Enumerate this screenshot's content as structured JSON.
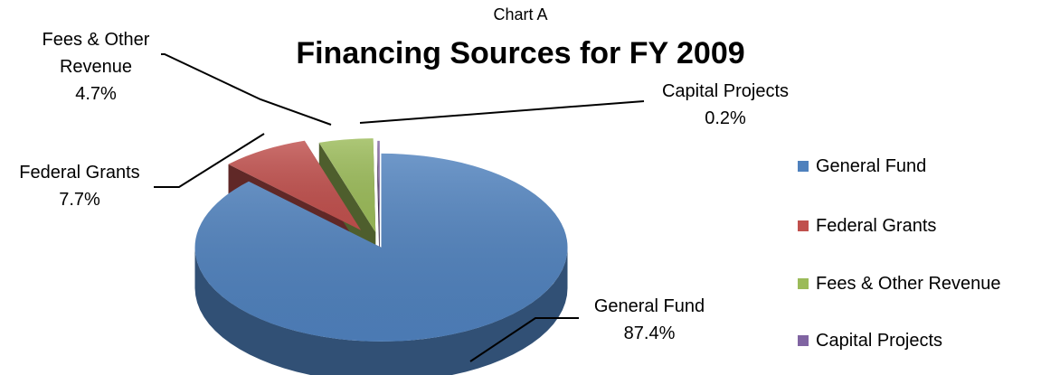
{
  "chart_data": {
    "type": "pie",
    "subtitle": "Chart A",
    "title": "Financing Sources for FY 2009",
    "slices": [
      {
        "name": "General Fund",
        "value": 87.4,
        "label": "87.4%",
        "color": "#4F81BD"
      },
      {
        "name": "Federal Grants",
        "value": 7.7,
        "label": "7.7%",
        "color": "#C0504D"
      },
      {
        "name": "Fees & Other Revenue",
        "value": 4.7,
        "label": "4.7%",
        "color": "#9BBB59"
      },
      {
        "name": "Capital Projects",
        "value": 0.2,
        "label": "0.2%",
        "color": "#8064A2"
      }
    ],
    "data_labels": {
      "general_fund": {
        "line1": "General Fund",
        "line2": "87.4%"
      },
      "federal_grants": {
        "line1": "Federal Grants",
        "line2": "7.7%"
      },
      "fees": {
        "line1": "Fees & Other",
        "line2": "Revenue",
        "line3": "4.7%"
      },
      "capital": {
        "line1": "Capital Projects",
        "line2": "0.2%"
      }
    },
    "legend": {
      "position": "right",
      "items": [
        "General Fund",
        "Federal Grants",
        "Fees & Other Revenue",
        "Capital Projects"
      ]
    },
    "style": "3d-exploded"
  }
}
